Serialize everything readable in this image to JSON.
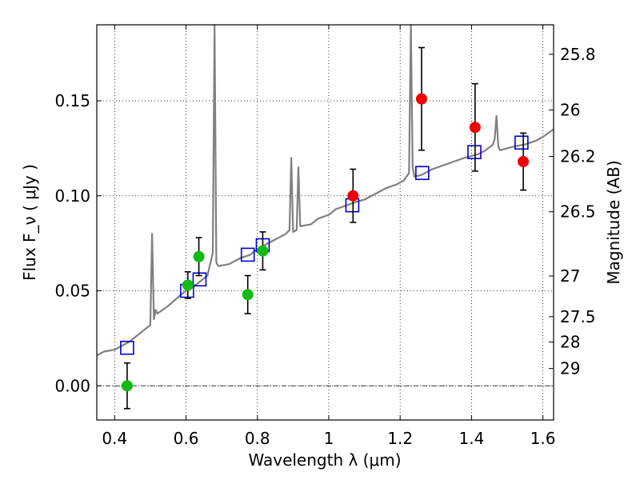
{
  "chart_data": {
    "type": "scatter",
    "xlabel": "Wavelength  λ (μm)",
    "ylabel": "Flux  F_ν  ( μJy )",
    "y2label": "Magnitude (AB)",
    "xlim": [
      0.35,
      1.63
    ],
    "ylim": [
      -0.018,
      0.19
    ],
    "x_ticks": [
      0.4,
      0.6,
      0.8,
      1.0,
      1.2,
      1.4,
      1.6
    ],
    "x_tick_labels": [
      "0.4",
      "0.6",
      "0.8",
      "1",
      "1.2",
      "1.4",
      "1.6"
    ],
    "y_ticks": [
      0.0,
      0.05,
      0.1,
      0.15
    ],
    "y_tick_labels": [
      "0.00",
      "0.05",
      "0.10",
      "0.15"
    ],
    "y2_ticks": [
      {
        "label": "25.8",
        "flux": 0.1745
      },
      {
        "label": "26",
        "flux": 0.1452
      },
      {
        "label": "26.2",
        "flux": 0.1207
      },
      {
        "label": "26.5",
        "flux": 0.0916
      },
      {
        "label": "27",
        "flux": 0.0578
      },
      {
        "label": "27.5",
        "flux": 0.0364
      },
      {
        "label": "28",
        "flux": 0.023
      },
      {
        "label": "29",
        "flux": 0.0091
      }
    ],
    "grid": true,
    "zero_line": true,
    "colors": {
      "spectrum": "#808080",
      "model_points": "#0000cc",
      "optical_points": "#11bb11",
      "nir_points": "#ee0000",
      "errorbar": "#000000"
    },
    "series": [
      {
        "kind": "line",
        "x": [
          0.35,
          0.37,
          0.4,
          0.42,
          0.44,
          0.46,
          0.48,
          0.5,
          0.505,
          0.51,
          0.515,
          0.52,
          0.55,
          0.58,
          0.6,
          0.62,
          0.64,
          0.66,
          0.675,
          0.68,
          0.685,
          0.69,
          0.72,
          0.75,
          0.78,
          0.8,
          0.82,
          0.85,
          0.88,
          0.89,
          0.895,
          0.9,
          0.91,
          0.915,
          0.92,
          0.95,
          0.97,
          1.0,
          1.02,
          1.05,
          1.08,
          1.1,
          1.13,
          1.16,
          1.19,
          1.21,
          1.225,
          1.23,
          1.235,
          1.24,
          1.26,
          1.29,
          1.32,
          1.35,
          1.38,
          1.4,
          1.42,
          1.44,
          1.46,
          1.465,
          1.47,
          1.475,
          1.48,
          1.5,
          1.52,
          1.55,
          1.58,
          1.6,
          1.63
        ],
        "y": [
          0.016,
          0.018,
          0.019,
          0.021,
          0.023,
          0.026,
          0.029,
          0.032,
          0.08,
          0.035,
          0.04,
          0.038,
          0.042,
          0.047,
          0.05,
          0.052,
          0.055,
          0.058,
          0.07,
          0.19,
          0.065,
          0.063,
          0.064,
          0.067,
          0.069,
          0.072,
          0.074,
          0.077,
          0.08,
          0.082,
          0.12,
          0.081,
          0.082,
          0.115,
          0.084,
          0.085,
          0.088,
          0.09,
          0.093,
          0.095,
          0.097,
          0.098,
          0.101,
          0.104,
          0.106,
          0.108,
          0.112,
          0.19,
          0.115,
          0.11,
          0.111,
          0.114,
          0.116,
          0.118,
          0.12,
          0.121,
          0.122,
          0.124,
          0.127,
          0.13,
          0.142,
          0.126,
          0.124,
          0.125,
          0.126,
          0.127,
          0.129,
          0.131,
          0.135
        ]
      },
      {
        "kind": "open-squares",
        "x": [
          0.435,
          0.603,
          0.638,
          0.773,
          0.815,
          1.066,
          1.262,
          1.408,
          1.54
        ],
        "y": [
          0.02,
          0.05,
          0.056,
          0.069,
          0.074,
          0.095,
          0.112,
          0.123,
          0.128
        ]
      },
      {
        "kind": "points",
        "color_key": "optical_points",
        "x": [
          0.435,
          0.605,
          0.636,
          0.773,
          0.815
        ],
        "y": [
          0.0,
          0.053,
          0.068,
          0.048,
          0.071
        ],
        "err": [
          0.012,
          0.007,
          0.01,
          0.01,
          0.01
        ]
      },
      {
        "kind": "points",
        "color_key": "nir_points",
        "x": [
          1.068,
          1.26,
          1.41,
          1.545
        ],
        "y": [
          0.1,
          0.151,
          0.136,
          0.118
        ],
        "err": [
          0.014,
          0.027,
          0.023,
          0.015
        ]
      }
    ]
  }
}
